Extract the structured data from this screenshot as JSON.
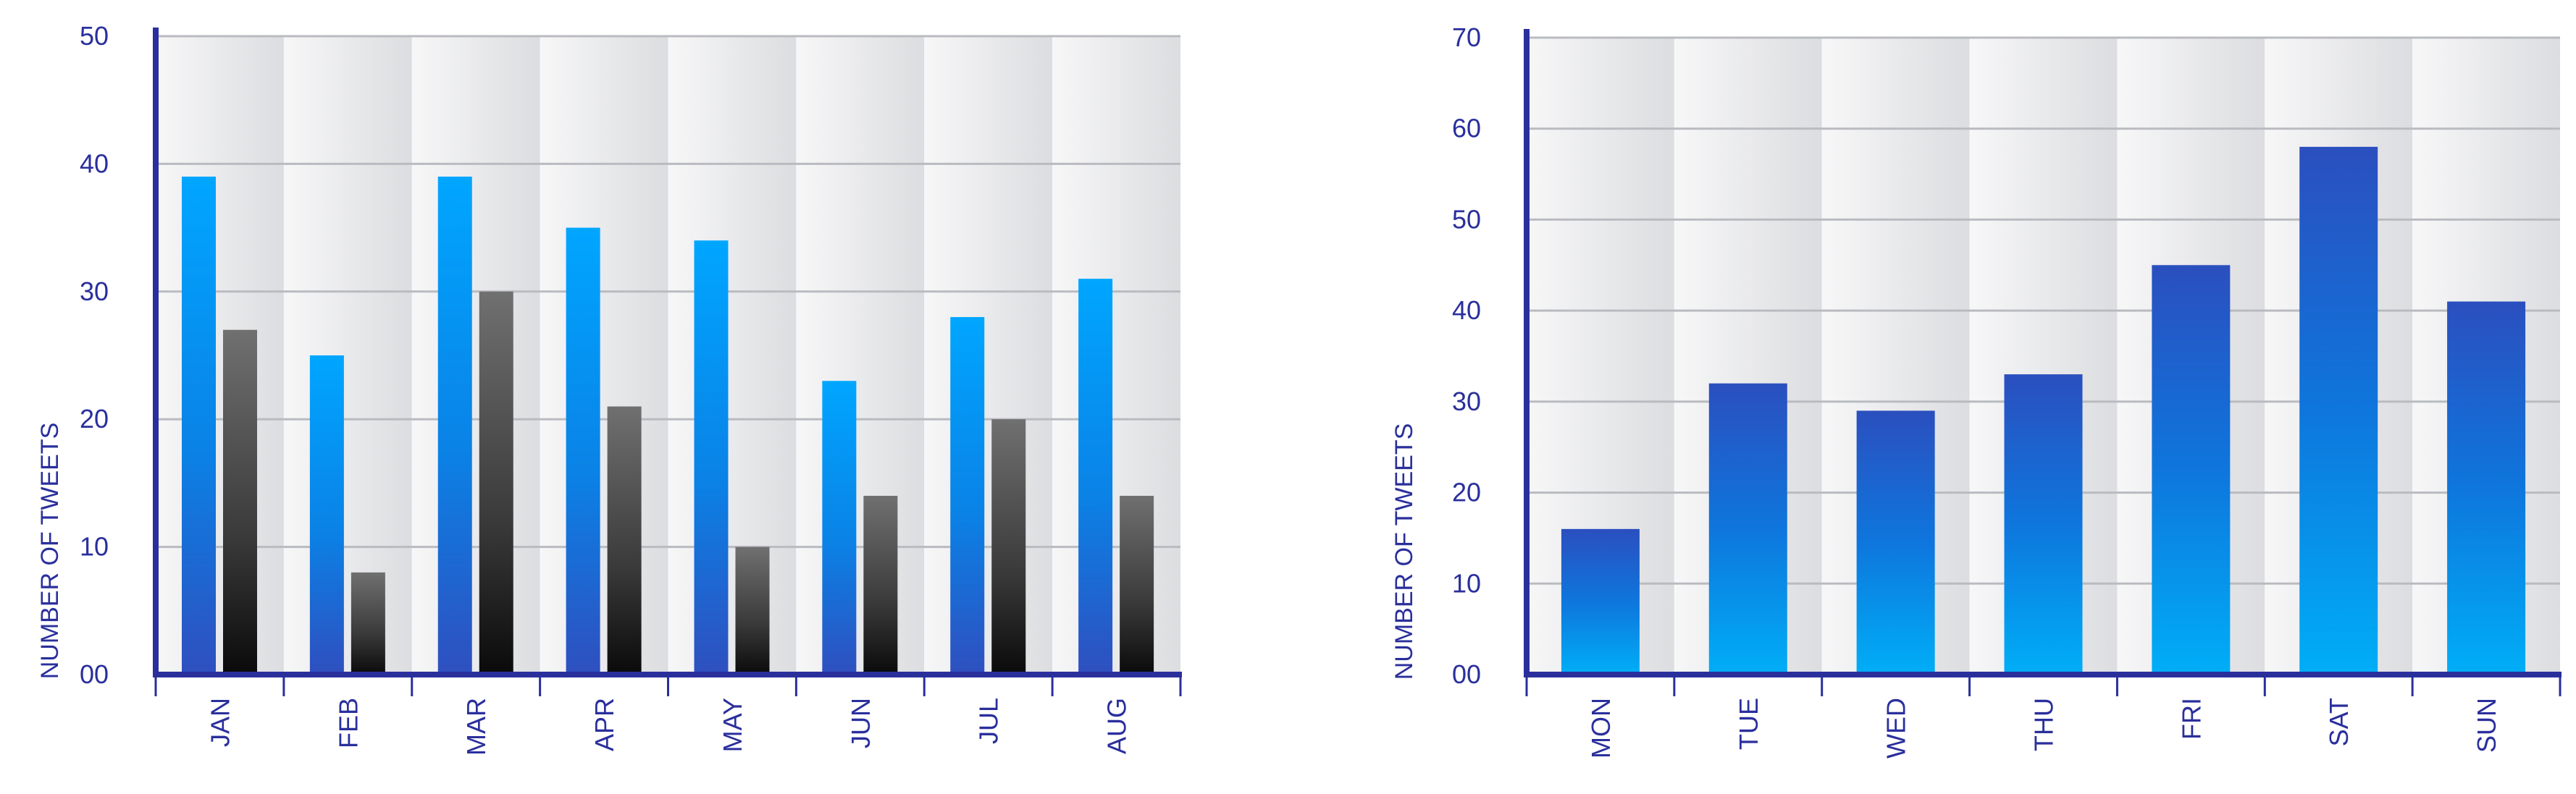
{
  "chart_data": [
    {
      "type": "bar",
      "categories": [
        "JAN",
        "FEB",
        "MAR",
        "APR",
        "MAY",
        "JUN",
        "JUL",
        "AUG"
      ],
      "series": [
        {
          "values": [
            39,
            25,
            39,
            35,
            34,
            23,
            28,
            31
          ],
          "color": "#0a8ff0"
        },
        {
          "values": [
            27,
            8,
            30,
            21,
            10,
            14,
            20,
            14
          ],
          "color": "#3a3a3a"
        }
      ],
      "title": "",
      "xlabel": "",
      "ylabel": "NUMBER OF TWEETS",
      "ylim": [
        0,
        50
      ],
      "yticks": [
        "00",
        "10",
        "20",
        "30",
        "40",
        "50"
      ],
      "grid": true
    },
    {
      "type": "bar",
      "categories": [
        "MON",
        "TUE",
        "WED",
        "THU",
        "FRI",
        "SAT",
        "SUN"
      ],
      "series": [
        {
          "values": [
            16,
            32,
            29,
            33,
            45,
            58,
            41
          ],
          "color": "#1e6fd6"
        }
      ],
      "title": "",
      "xlabel": "",
      "ylabel": "NUMBER OF TWEETS",
      "ylim": [
        0,
        70
      ],
      "yticks": [
        "00",
        "10",
        "20",
        "30",
        "40",
        "50",
        "60",
        "70"
      ],
      "grid": true
    }
  ],
  "colors": {
    "axis": "#2a2f9c",
    "grid": "#b9bbc0",
    "text": "#2a2f9c"
  }
}
